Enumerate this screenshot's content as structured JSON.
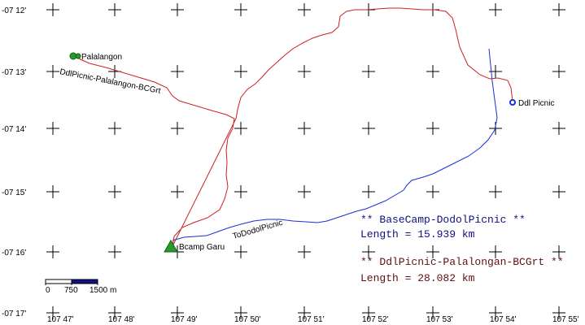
{
  "latitude_labels": [
    "-07 12'",
    "-07 13'",
    "-07 14'",
    "-07 15'",
    "-07 16'",
    "-07 17'"
  ],
  "longitude_labels": [
    "107 47'",
    "107 48'",
    "107 49'",
    "107 50'",
    "107 51'",
    "107 52'",
    "107 53'",
    "107 54'",
    "107 55'"
  ],
  "waypoints": {
    "palalangon": "Palalangon",
    "ddl_picnic": "Ddl Picnic",
    "bcamp_garu": "Bcamp Garu"
  },
  "route_labels": {
    "palalangon_route": "DdlPicnic-Palalangon-BCGrt",
    "dodol_route": "ToDodolPicnic"
  },
  "legend": {
    "blue_title": "** BaseCamp-DodolPicnic **",
    "blue_length": "Length = 15.939 km",
    "red_title": "** DdlPicnic-Palalongan-BCGrt **",
    "red_length": "Length = 28.082 km"
  },
  "scale_bar": {
    "label_0": "0",
    "label_mid": "750",
    "label_end": "1500 m"
  },
  "colors": {
    "blue_route": "#1a2fd6",
    "red_route": "#cc2020",
    "blue_legend": "#101080",
    "red_legend": "#601010",
    "grid": "#000000",
    "waypoint_green": "#2a9a2a"
  }
}
